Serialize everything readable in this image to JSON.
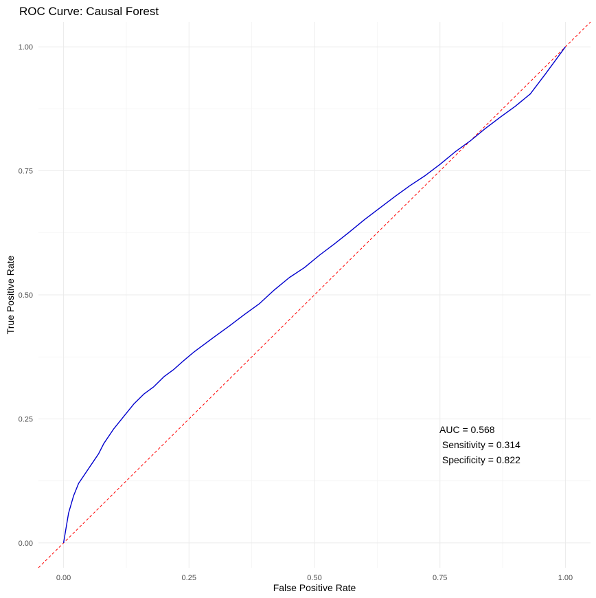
{
  "chart_data": {
    "type": "line",
    "title": "ROC Curve: Causal Forest",
    "xlabel": "False Positive Rate",
    "ylabel": "True Positive Rate",
    "xlim": [
      -0.05,
      1.05
    ],
    "ylim": [
      -0.05,
      1.05
    ],
    "x_ticks": [
      "0.00",
      "0.25",
      "0.50",
      "0.75",
      "1.00"
    ],
    "y_ticks": [
      "0.00",
      "0.25",
      "0.50",
      "0.75",
      "1.00"
    ],
    "grid": true,
    "legend": "none",
    "series": [
      {
        "color": "#0000cd",
        "x": [
          0.0,
          0.005,
          0.01,
          0.02,
          0.03,
          0.04,
          0.05,
          0.06,
          0.07,
          0.08,
          0.09,
          0.1,
          0.12,
          0.14,
          0.16,
          0.18,
          0.2,
          0.22,
          0.24,
          0.26,
          0.28,
          0.3,
          0.33,
          0.36,
          0.39,
          0.42,
          0.45,
          0.48,
          0.51,
          0.54,
          0.57,
          0.6,
          0.63,
          0.66,
          0.69,
          0.72,
          0.75,
          0.78,
          0.81,
          0.84,
          0.87,
          0.9,
          0.93,
          0.96,
          1.0
        ],
        "y": [
          0.0,
          0.03,
          0.06,
          0.095,
          0.12,
          0.135,
          0.15,
          0.165,
          0.18,
          0.2,
          0.215,
          0.23,
          0.255,
          0.28,
          0.3,
          0.315,
          0.335,
          0.35,
          0.368,
          0.385,
          0.4,
          0.415,
          0.437,
          0.46,
          0.482,
          0.51,
          0.535,
          0.555,
          0.58,
          0.603,
          0.627,
          0.652,
          0.675,
          0.698,
          0.72,
          0.74,
          0.763,
          0.788,
          0.81,
          0.835,
          0.858,
          0.88,
          0.905,
          0.945,
          1.0
        ]
      },
      {
        "color": "#ff0000",
        "style": "dashed",
        "x": [
          -0.05,
          1.05
        ],
        "y": [
          -0.05,
          1.05
        ]
      }
    ],
    "annotations": [
      "AUC = 0.568",
      " Sensitivity = 0.314",
      " Specificity = 0.822"
    ]
  }
}
